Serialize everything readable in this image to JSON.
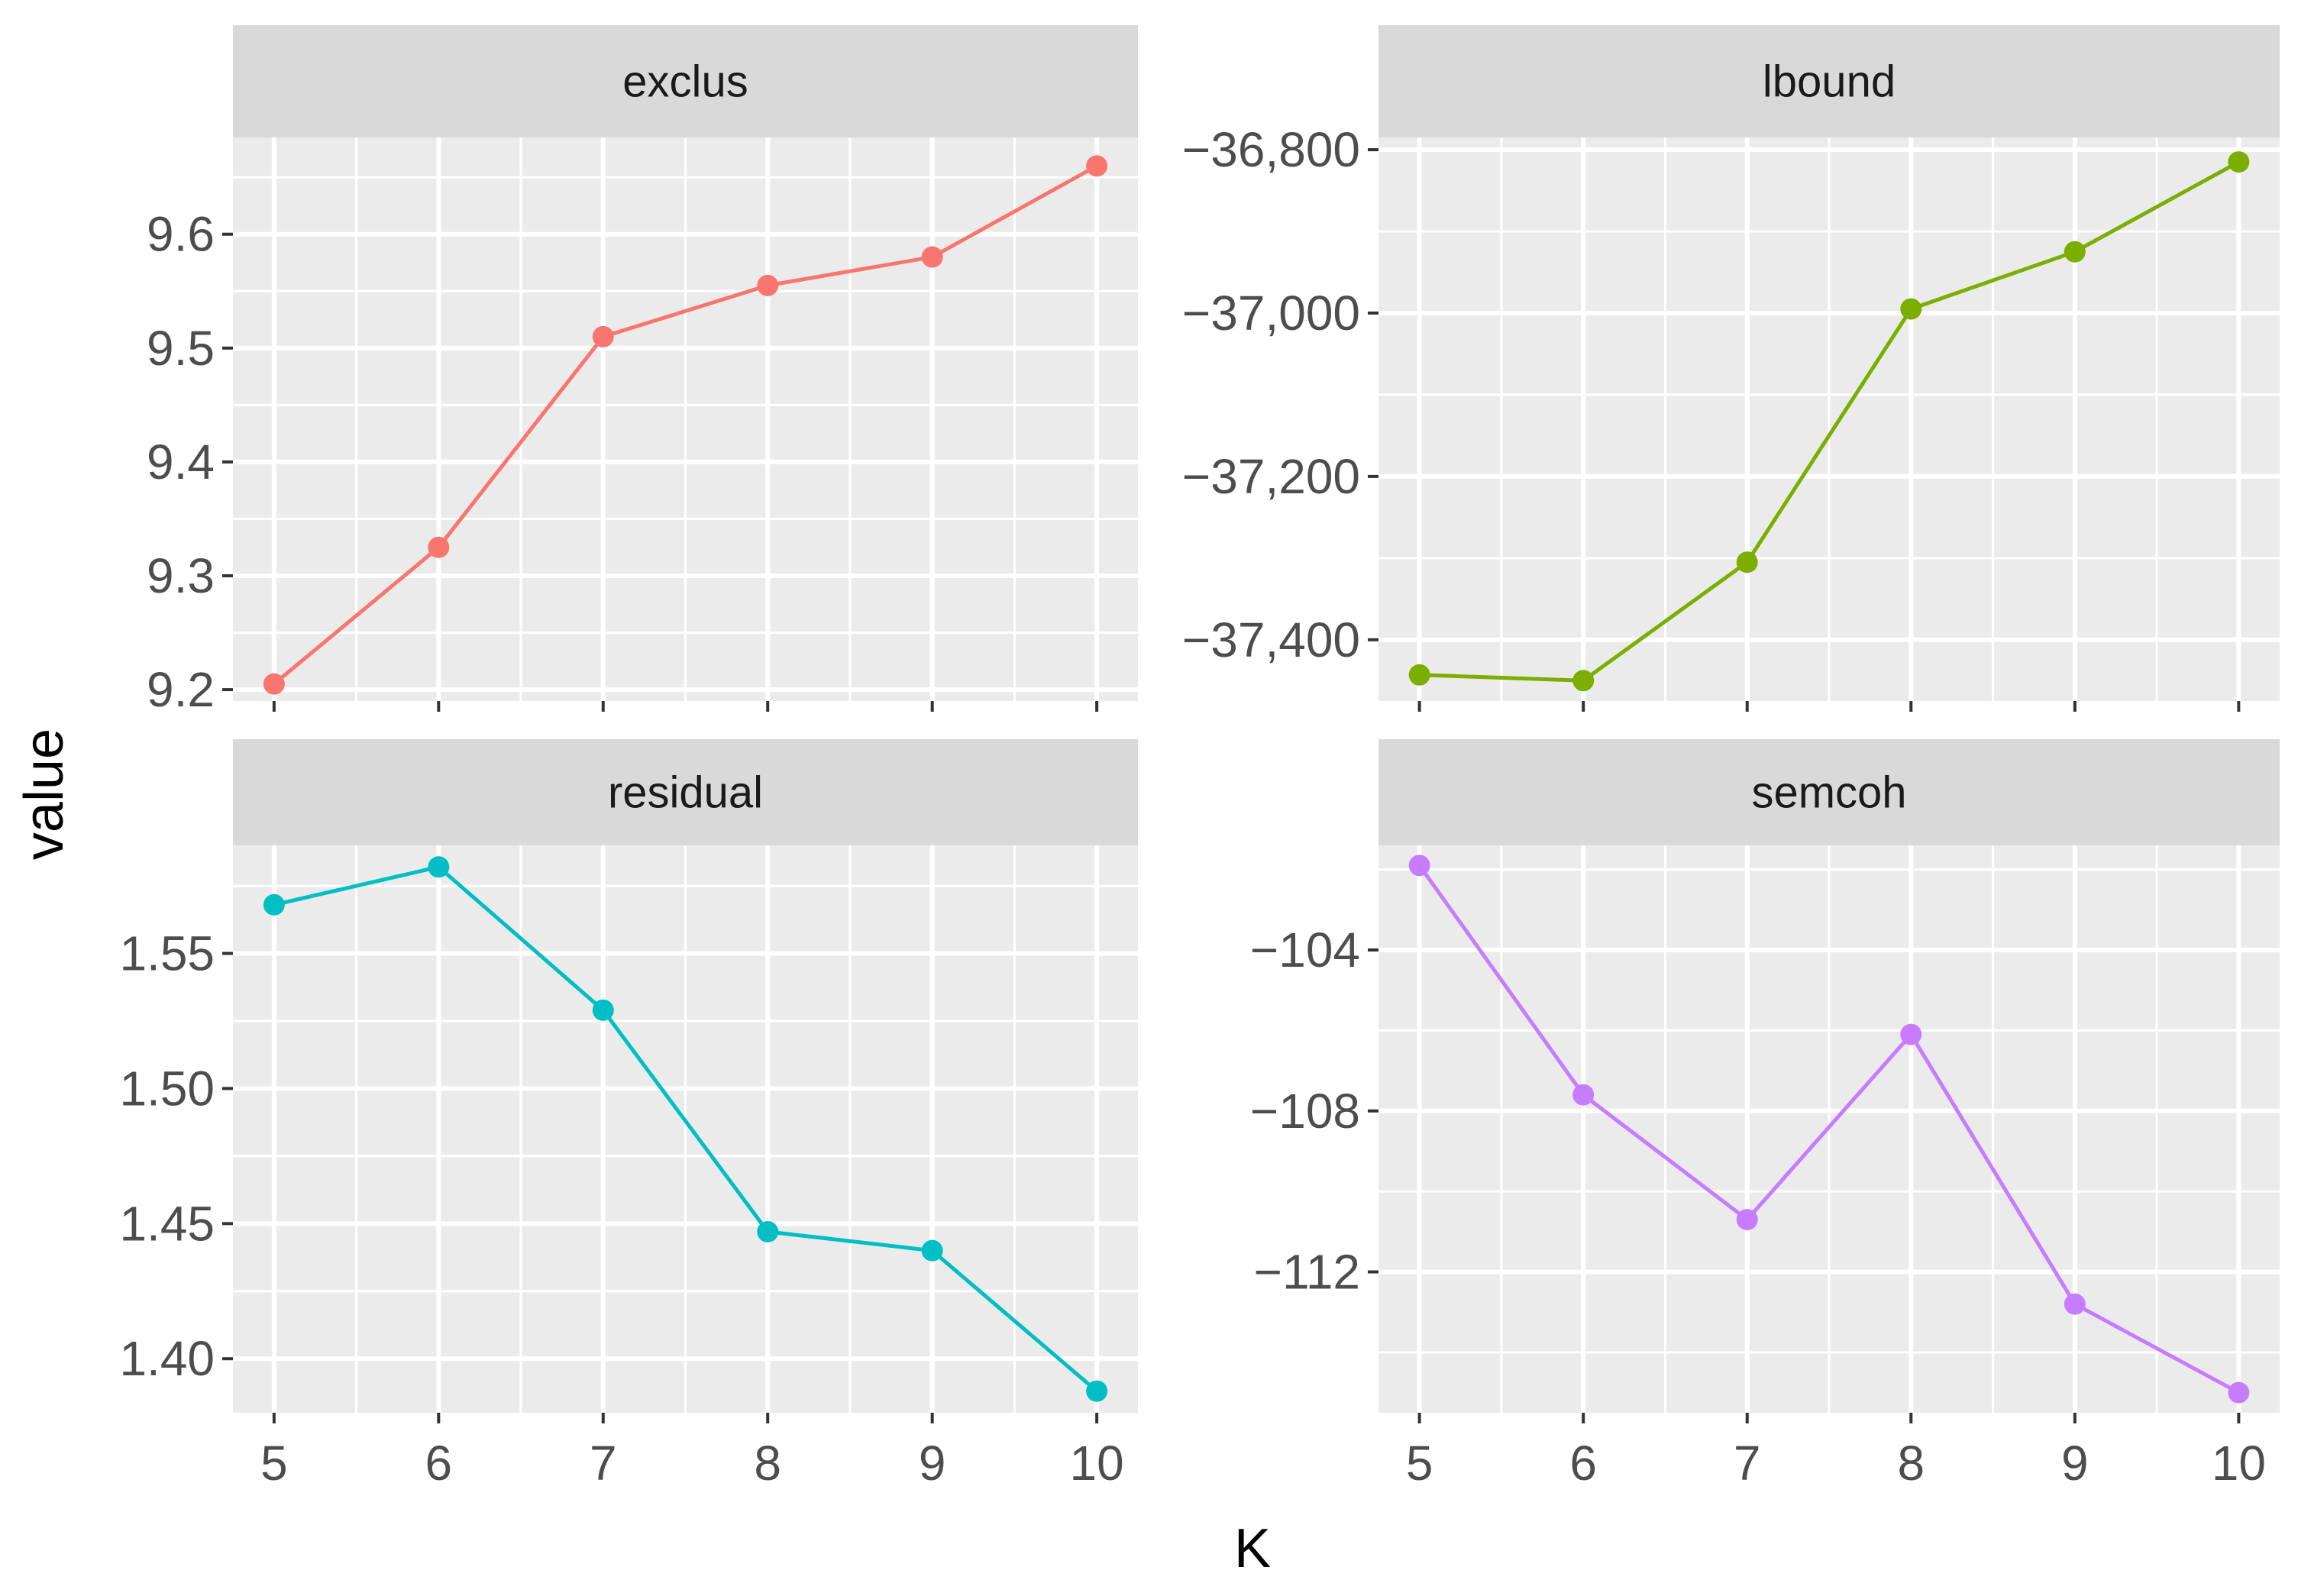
{
  "chart_data": {
    "type": "line",
    "facet_layout": "2x2",
    "xlabel": "K",
    "ylabel": "value",
    "x": [
      5,
      6,
      7,
      8,
      9,
      10
    ],
    "xticks": [
      "5",
      "6",
      "7",
      "8",
      "9",
      "10"
    ],
    "xlim": [
      4.75,
      10.25
    ],
    "grid": true,
    "panels": [
      {
        "title": "exclus",
        "color": "#F8766D",
        "values": [
          9.205,
          9.325,
          9.51,
          9.555,
          9.58,
          9.66
        ],
        "ylim": [
          9.19,
          9.685
        ],
        "yticks": [
          9.2,
          9.3,
          9.4,
          9.5,
          9.6
        ],
        "ytick_labels": [
          "9.2",
          "9.3",
          "9.4",
          "9.5",
          "9.6"
        ],
        "yminor": [
          9.25,
          9.35,
          9.45,
          9.55,
          9.65
        ]
      },
      {
        "title": "lbound",
        "color": "#7CAE00",
        "values": [
          -37443,
          -37450,
          -37305,
          -36995,
          -36925,
          -36815
        ],
        "ylim": [
          -37475,
          -36785
        ],
        "yticks": [
          -37400,
          -37200,
          -37000,
          -36800
        ],
        "ytick_labels": [
          "−37,400",
          "−37,200",
          "−37,000",
          "−36,800"
        ],
        "yminor": [
          -37300,
          -37100,
          -36900
        ]
      },
      {
        "title": "residual",
        "color": "#00BFC4",
        "values": [
          1.568,
          1.582,
          1.529,
          1.447,
          1.44,
          1.388
        ],
        "ylim": [
          1.38,
          1.59
        ],
        "yticks": [
          1.4,
          1.45,
          1.5,
          1.55
        ],
        "ytick_labels": [
          "1.40",
          "1.45",
          "1.50",
          "1.55"
        ],
        "yminor": [
          1.425,
          1.475,
          1.525,
          1.575
        ]
      },
      {
        "title": "semcoh",
        "color": "#C77CFF",
        "values": [
          -101.9,
          -107.6,
          -110.7,
          -106.1,
          -112.8,
          -115.0
        ],
        "ylim": [
          -115.5,
          -101.4
        ],
        "yticks": [
          -104,
          -108,
          -112
        ],
        "ytick_labels": [
          "−104",
          "−108",
          "−112"
        ],
        "yminor": [
          -102,
          -106,
          -110,
          -114
        ]
      }
    ]
  }
}
